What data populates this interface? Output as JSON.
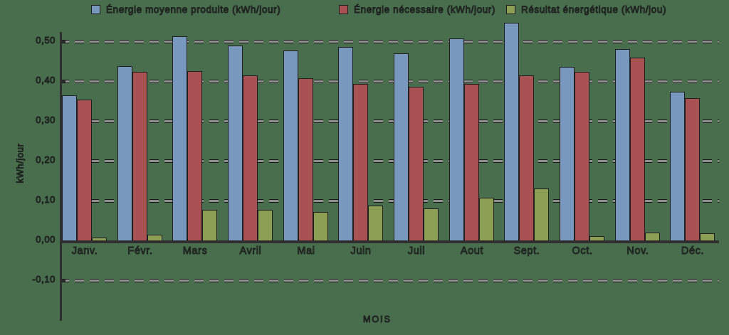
{
  "chart_data": {
    "type": "bar",
    "title": "",
    "xlabel": "MOIS",
    "ylabel": "kWh/jour",
    "categories": [
      "Janv.",
      "Févr.",
      "Mars",
      "Avril",
      "Mai",
      "Juin",
      "Juil",
      "Aout",
      "Sept.",
      "Oct.",
      "Nov.",
      "Déc."
    ],
    "series": [
      {
        "name": "Énergie moyenne produite (kWh/jour)",
        "color": "#7899bd",
        "values": [
          0.365,
          0.438,
          0.512,
          0.489,
          0.477,
          0.485,
          0.47,
          0.508,
          0.546,
          0.435,
          0.48,
          0.374
        ]
      },
      {
        "name": "Énergie nécessaire (kWh/jour)",
        "color": "#a85254",
        "values": [
          0.354,
          0.424,
          0.425,
          0.414,
          0.408,
          0.392,
          0.386,
          0.393,
          0.415,
          0.424,
          0.459,
          0.358
        ]
      },
      {
        "name": "Résultat énergétique (kWh/jou)",
        "color": "#8d9f55",
        "values": [
          0.007,
          0.015,
          0.076,
          0.076,
          0.071,
          0.088,
          0.081,
          0.107,
          0.13,
          0.01,
          0.019,
          0.017
        ]
      }
    ],
    "ylim": [
      -0.1,
      0.55
    ],
    "yticks": [
      0.5,
      0.4,
      0.3,
      0.2,
      0.1,
      0.0,
      -0.1
    ],
    "ytick_labels": [
      "0,50",
      "0,40",
      "0,30",
      "0,20",
      "0,10",
      "0,00",
      "-0,10"
    ],
    "grid": "dashed-horizontal",
    "legend_position": "top",
    "background_color": "#486e4e",
    "axis_color": "#2f2f2f"
  }
}
